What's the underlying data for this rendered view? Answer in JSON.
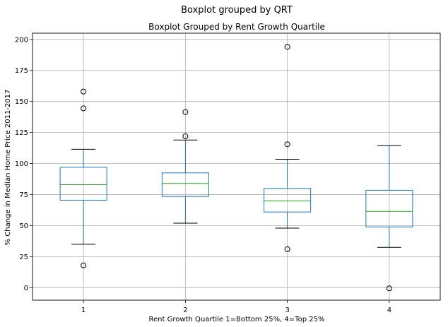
{
  "chart_data": {
    "type": "box",
    "suptitle": "Boxplot grouped by QRT",
    "title": "Boxplot Grouped by Rent Growth Quartile",
    "xlabel": "Rent Growth Quartile 1=Bottom 25%, 4=Top 25%",
    "ylabel": "% Change in Median Home Price 2011-2017",
    "ylim": [
      -10,
      205
    ],
    "yticks": [
      0,
      25,
      50,
      75,
      100,
      125,
      150,
      175,
      200
    ],
    "grid": true,
    "categories": [
      "1",
      "2",
      "3",
      "4"
    ],
    "boxes": [
      {
        "category": "1",
        "whisker_low": 35,
        "q1": 70.5,
        "median": 83,
        "q3": 97,
        "whisker_high": 111.5,
        "outliers": [
          158,
          144.5,
          18
        ]
      },
      {
        "category": "2",
        "whisker_low": 52,
        "q1": 73.5,
        "median": 84,
        "q3": 92.5,
        "whisker_high": 119,
        "outliers": [
          141.5,
          122
        ]
      },
      {
        "category": "3",
        "whisker_low": 48,
        "q1": 61,
        "median": 70,
        "q3": 80,
        "whisker_high": 103.5,
        "outliers": [
          194,
          115.5,
          31
        ]
      },
      {
        "category": "4",
        "whisker_low": 32.5,
        "q1": 49,
        "median": 61.5,
        "q3": 78.5,
        "whisker_high": 114.5,
        "outliers": [
          -0.5
        ]
      }
    ],
    "colors": {
      "box": "#1f77b4",
      "median": "#2ca02c",
      "whisker_cap": "#000000",
      "flier": "#000000",
      "grid": "#b0b0b0",
      "axes": "#000000"
    }
  }
}
